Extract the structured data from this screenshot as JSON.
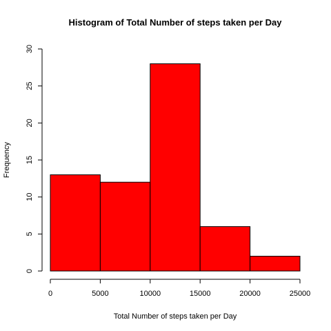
{
  "chart_data": {
    "type": "bar",
    "title": "Histogram of Total Number of steps taken per Day",
    "xlabel": "Total Number of steps taken per Day",
    "ylabel": "Frequency",
    "bins": [
      {
        "start": 0,
        "end": 5000,
        "value": 13
      },
      {
        "start": 5000,
        "end": 10000,
        "value": 12
      },
      {
        "start": 10000,
        "end": 15000,
        "value": 28
      },
      {
        "start": 15000,
        "end": 20000,
        "value": 6
      },
      {
        "start": 20000,
        "end": 25000,
        "value": 2
      }
    ],
    "xlim": [
      0,
      25000
    ],
    "ylim": [
      0,
      30
    ],
    "xticks": [
      "0",
      "5000",
      "10000",
      "15000",
      "20000",
      "25000"
    ],
    "xtick_values": [
      0,
      5000,
      10000,
      15000,
      20000,
      25000
    ],
    "yticks": [
      "0",
      "5",
      "10",
      "15",
      "20",
      "25",
      "30"
    ],
    "ytick_values": [
      0,
      5,
      10,
      15,
      20,
      25,
      30
    ],
    "bar_color": "#ff0000",
    "grid": false,
    "legend": false
  }
}
